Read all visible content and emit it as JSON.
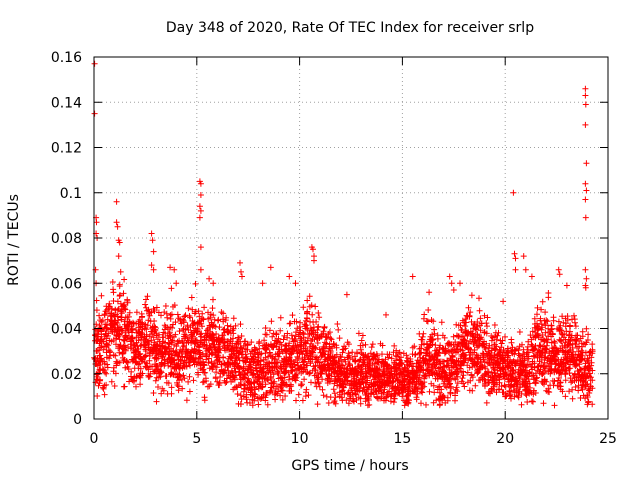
{
  "chart_data": {
    "type": "scatter",
    "title": "Day 348 of 2020, Rate Of TEC Index for receiver srlp",
    "xlabel": "GPS time / hours",
    "ylabel": "ROTI / TECUs",
    "xlim": [
      0,
      25
    ],
    "ylim": [
      0,
      0.16
    ],
    "x_ticks": [
      0,
      5,
      10,
      15,
      20,
      25
    ],
    "x_tick_labels": [
      "0",
      "5",
      "10",
      "15",
      "20",
      "25"
    ],
    "y_ticks": [
      0,
      0.02,
      0.04,
      0.06,
      0.08,
      0.1,
      0.12,
      0.14,
      0.16
    ],
    "y_tick_labels": [
      "0",
      "0.02",
      "0.04",
      "0.06",
      "0.08",
      "0.1",
      "0.12",
      "0.14",
      "0.16"
    ],
    "grid": true,
    "marker": "plus",
    "color": "#ff0000",
    "series": [
      {
        "name": "ROTI",
        "profile": {
          "description": "approximate envelope of the dense point cloud, sampled every 0.25 h",
          "x_step": 0.25,
          "median": [
            0.027,
            0.03,
            0.034,
            0.036,
            0.038,
            0.04,
            0.037,
            0.034,
            0.03,
            0.032,
            0.036,
            0.034,
            0.03,
            0.029,
            0.03,
            0.032,
            0.03,
            0.031,
            0.03,
            0.032,
            0.033,
            0.03,
            0.031,
            0.033,
            0.03,
            0.031,
            0.03,
            0.026,
            0.024,
            0.022,
            0.02,
            0.02,
            0.021,
            0.023,
            0.022,
            0.025,
            0.024,
            0.024,
            0.026,
            0.027,
            0.028,
            0.03,
            0.033,
            0.03,
            0.028,
            0.026,
            0.023,
            0.022,
            0.02,
            0.02,
            0.019,
            0.02,
            0.021,
            0.019,
            0.021,
            0.019,
            0.018,
            0.018,
            0.018,
            0.02,
            0.018,
            0.016,
            0.019,
            0.022,
            0.025,
            0.03,
            0.025,
            0.024,
            0.023,
            0.022,
            0.025,
            0.027,
            0.03,
            0.032,
            0.031,
            0.029,
            0.028,
            0.026,
            0.025,
            0.024,
            0.022,
            0.022,
            0.02,
            0.021,
            0.02,
            0.025,
            0.03,
            0.032,
            0.03,
            0.028,
            0.026,
            0.03,
            0.032,
            0.03,
            0.025,
            0.024,
            0.022,
            0.02
          ],
          "spread": [
            0.01,
            0.012,
            0.013,
            0.013,
            0.013,
            0.012,
            0.012,
            0.011,
            0.011,
            0.011,
            0.011,
            0.011,
            0.01,
            0.01,
            0.011,
            0.011,
            0.011,
            0.011,
            0.011,
            0.011,
            0.011,
            0.011,
            0.011,
            0.011,
            0.01,
            0.01,
            0.011,
            0.011,
            0.011,
            0.01,
            0.01,
            0.01,
            0.01,
            0.01,
            0.01,
            0.01,
            0.01,
            0.011,
            0.011,
            0.011,
            0.011,
            0.012,
            0.012,
            0.012,
            0.011,
            0.01,
            0.009,
            0.009,
            0.008,
            0.008,
            0.008,
            0.008,
            0.008,
            0.008,
            0.008,
            0.008,
            0.008,
            0.008,
            0.007,
            0.007,
            0.007,
            0.007,
            0.008,
            0.009,
            0.01,
            0.011,
            0.01,
            0.01,
            0.01,
            0.009,
            0.01,
            0.01,
            0.011,
            0.011,
            0.011,
            0.01,
            0.01,
            0.009,
            0.009,
            0.009,
            0.008,
            0.008,
            0.008,
            0.008,
            0.008,
            0.01,
            0.012,
            0.012,
            0.012,
            0.011,
            0.011,
            0.011,
            0.011,
            0.011,
            0.01,
            0.01,
            0.01,
            0.009
          ]
        },
        "notable_points": [
          [
            0.03,
            0.157
          ],
          [
            0.03,
            0.135
          ],
          [
            0.1,
            0.089
          ],
          [
            0.12,
            0.087
          ],
          [
            0.1,
            0.082
          ],
          [
            0.15,
            0.08
          ],
          [
            0.08,
            0.066
          ],
          [
            0.1,
            0.06
          ],
          [
            1.1,
            0.096
          ],
          [
            1.1,
            0.087
          ],
          [
            1.15,
            0.085
          ],
          [
            1.2,
            0.079
          ],
          [
            1.25,
            0.078
          ],
          [
            1.2,
            0.072
          ],
          [
            1.3,
            0.065
          ],
          [
            2.8,
            0.082
          ],
          [
            2.85,
            0.079
          ],
          [
            2.9,
            0.074
          ],
          [
            2.8,
            0.068
          ],
          [
            2.9,
            0.066
          ],
          [
            3.7,
            0.067
          ],
          [
            3.9,
            0.066
          ],
          [
            4.0,
            0.06
          ],
          [
            5.15,
            0.105
          ],
          [
            5.2,
            0.104
          ],
          [
            5.2,
            0.099
          ],
          [
            5.15,
            0.094
          ],
          [
            5.2,
            0.092
          ],
          [
            5.15,
            0.089
          ],
          [
            5.2,
            0.076
          ],
          [
            5.2,
            0.066
          ],
          [
            5.6,
            0.062
          ],
          [
            5.8,
            0.06
          ],
          [
            7.1,
            0.069
          ],
          [
            7.15,
            0.065
          ],
          [
            7.2,
            0.063
          ],
          [
            8.2,
            0.06
          ],
          [
            8.6,
            0.067
          ],
          [
            10.6,
            0.076
          ],
          [
            10.65,
            0.075
          ],
          [
            10.7,
            0.072
          ],
          [
            10.7,
            0.07
          ],
          [
            9.5,
            0.063
          ],
          [
            9.8,
            0.06
          ],
          [
            12.3,
            0.055
          ],
          [
            12.4,
            0.007
          ],
          [
            14.2,
            0.046
          ],
          [
            15.5,
            0.063
          ],
          [
            16.3,
            0.056
          ],
          [
            17.3,
            0.063
          ],
          [
            17.4,
            0.06
          ],
          [
            17.5,
            0.057
          ],
          [
            17.8,
            0.06
          ],
          [
            19.9,
            0.052
          ],
          [
            20.4,
            0.1
          ],
          [
            20.45,
            0.073
          ],
          [
            20.5,
            0.071
          ],
          [
            20.5,
            0.066
          ],
          [
            20.9,
            0.072
          ],
          [
            21.0,
            0.066
          ],
          [
            21.3,
            0.063
          ],
          [
            22.6,
            0.066
          ],
          [
            22.65,
            0.064
          ],
          [
            22.4,
            0.006
          ],
          [
            23.0,
            0.059
          ],
          [
            23.9,
            0.146
          ],
          [
            23.9,
            0.143
          ],
          [
            23.92,
            0.139
          ],
          [
            23.9,
            0.13
          ],
          [
            23.95,
            0.113
          ],
          [
            23.9,
            0.104
          ],
          [
            23.95,
            0.101
          ],
          [
            23.9,
            0.097
          ],
          [
            23.92,
            0.089
          ],
          [
            23.9,
            0.066
          ],
          [
            23.95,
            0.062
          ],
          [
            23.9,
            0.059
          ],
          [
            23.92,
            0.058
          ]
        ]
      }
    ]
  }
}
